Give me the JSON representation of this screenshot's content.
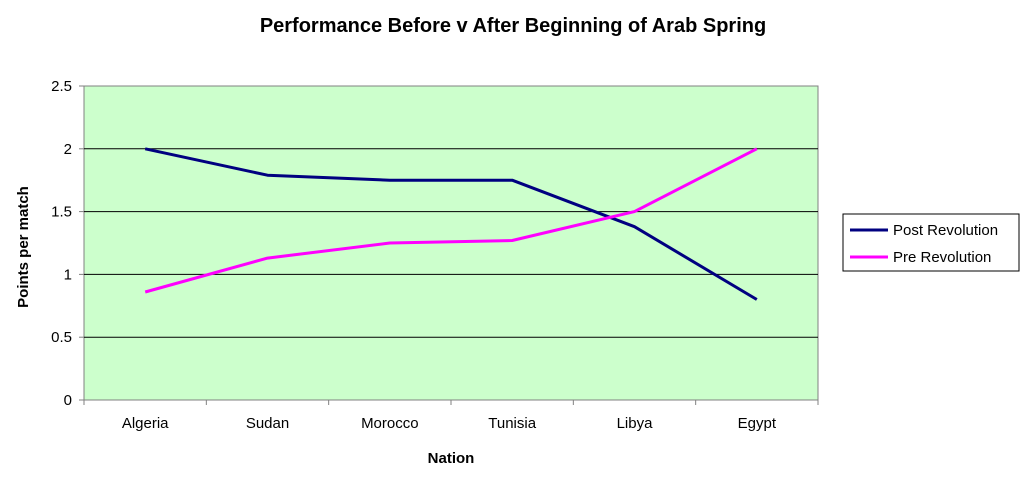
{
  "chart_data": {
    "type": "line",
    "title": "Performance Before v After Beginning of Arab Spring",
    "xlabel": "Nation",
    "ylabel": "Points  per match",
    "categories": [
      "Algeria",
      "Sudan",
      "Morocco",
      "Tunisia",
      "Libya",
      "Egypt"
    ],
    "ylim": [
      0,
      2.5
    ],
    "yticks": [
      "0",
      "0.5",
      "1",
      "1.5",
      "2",
      "2.5"
    ],
    "grid": "horizontal",
    "legend_position": "right",
    "plot_background": "#ccffcc",
    "series": [
      {
        "name": "Post Revolution",
        "color": "#000080",
        "values": [
          2.0,
          1.79,
          1.75,
          1.75,
          1.38,
          0.8
        ]
      },
      {
        "name": "Pre Revolution",
        "color": "#ff00ff",
        "values": [
          0.86,
          1.13,
          1.25,
          1.27,
          1.5,
          2.0
        ]
      }
    ]
  }
}
